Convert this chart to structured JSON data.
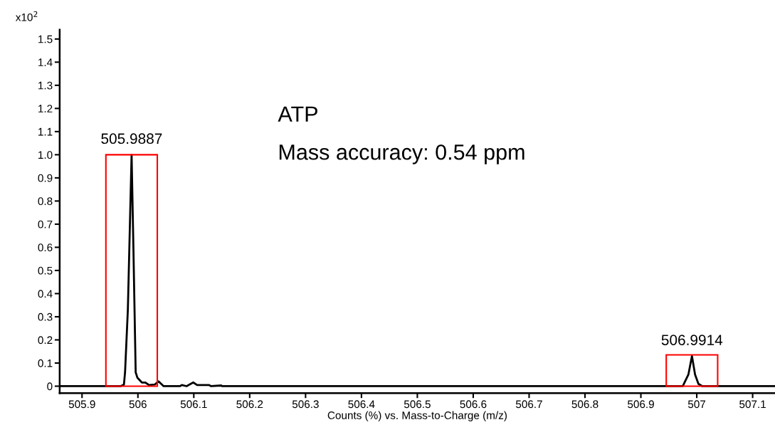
{
  "chart_data": {
    "type": "line",
    "xlabel": "Counts (%) vs. Mass-to-Charge (m/z)",
    "ylabel": "x10$^{2}$",
    "series": [
      {
        "color": "#000000",
        "x": [
          505.86,
          505.969,
          505.975,
          505.977,
          505.982,
          505.9887,
          505.992,
          505.996,
          505.999,
          506.007,
          506.013,
          506.02,
          506.03,
          506.037,
          506.046,
          506.075,
          506.079,
          506.087,
          506.099,
          506.106,
          506.127,
          506.131,
          506.149,
          506.151,
          506.975,
          506.985,
          506.9914,
          506.997,
          507.003,
          507.01,
          507.14
        ],
        "values": [
          0,
          0,
          0.007,
          0.06,
          0.33,
          1.0,
          0.59,
          0.06,
          0.037,
          0.016,
          0.016,
          0.005,
          0.007,
          0.021,
          0,
          0,
          0.005,
          0,
          0.016,
          0.005,
          0.005,
          0,
          0.003,
          0,
          0,
          0.05,
          0.13,
          0.05,
          0.01,
          0,
          0
        ]
      },
      {
        "type": "bar",
        "color": "#ff0000",
        "x": [
          505.9887,
          506.9914
        ],
        "values": [
          1.0,
          0.135
        ]
      }
    ],
    "xlim": [
      505.86,
      507.14
    ],
    "ylim": [
      -0.03,
      1.54
    ],
    "xticks": [
      505.9,
      506,
      506.1,
      506.2,
      506.3,
      506.4,
      506.5,
      506.6,
      506.7,
      506.8,
      506.9,
      507,
      507.1
    ],
    "yticks": [
      0,
      0.1,
      0.2,
      0.3,
      0.4,
      0.5,
      0.6,
      0.7,
      0.8,
      0.9,
      {
        "value": 1,
        "label": "1.0"
      },
      1.1,
      1.2,
      1.3,
      1.4,
      1.5
    ],
    "annotations": [
      {
        "text": "505.9887",
        "x": 505.9887,
        "y": 1.0
      },
      {
        "text": "506.9914",
        "x": 506.9914,
        "y": 0.13
      },
      "ATP",
      "Mass accuracy: 0.54 ppm"
    ],
    "grid": false,
    "legend": false,
    "marker": "none",
    "line_style": "solid"
  }
}
